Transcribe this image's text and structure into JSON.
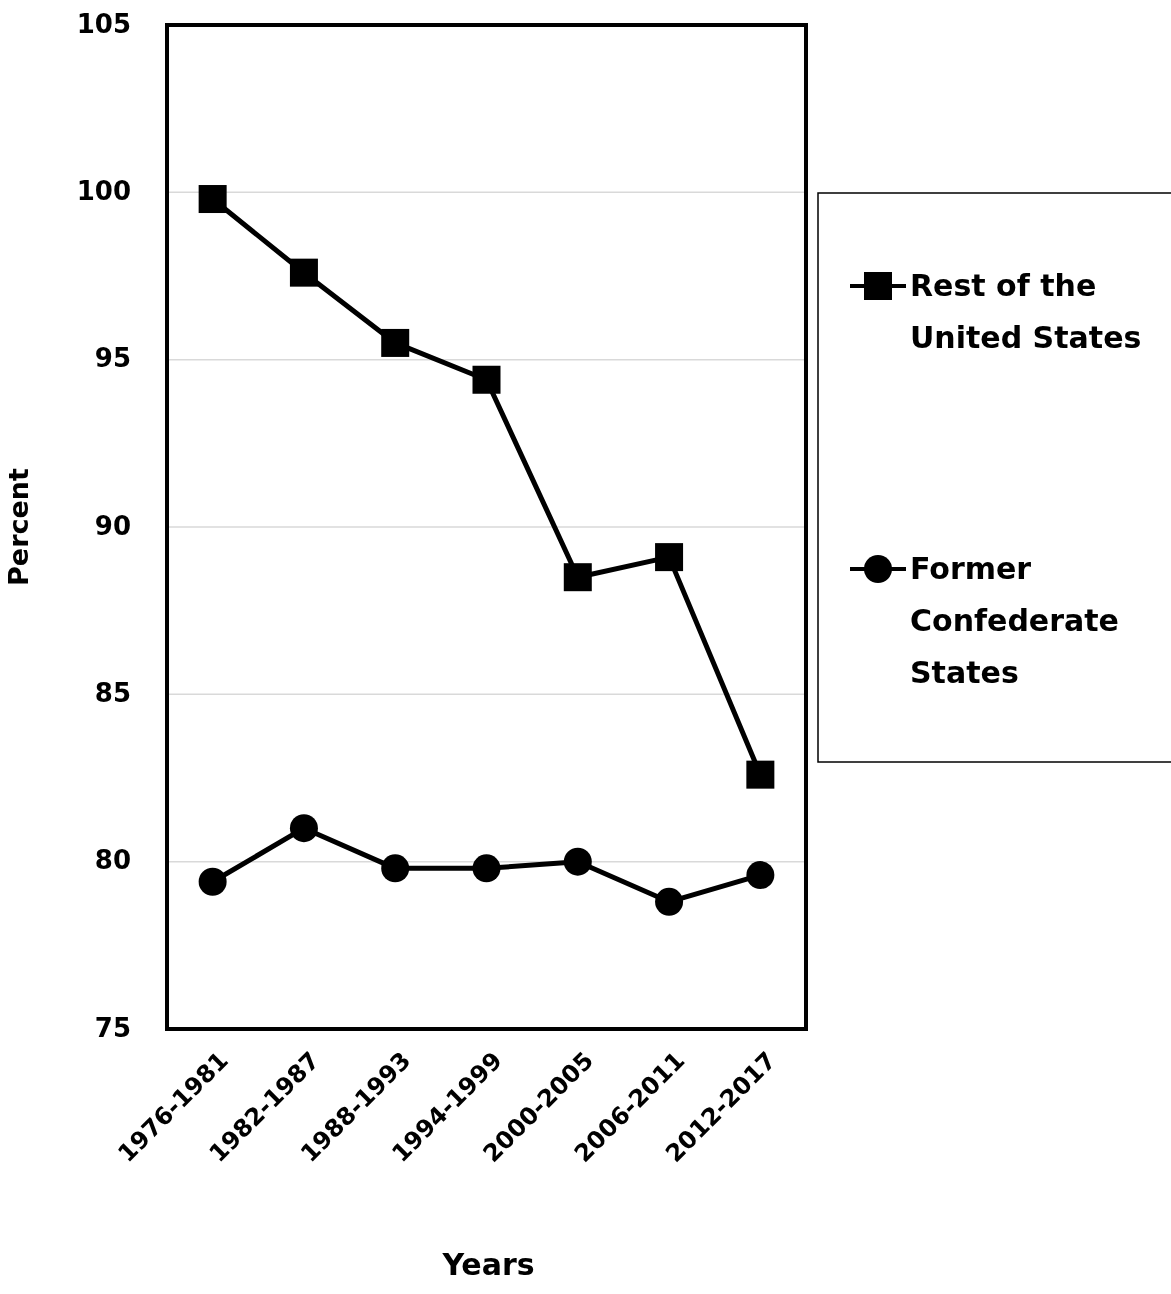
{
  "chart_data": {
    "type": "line",
    "xlabel": "Years",
    "ylabel": "Percent",
    "categories": [
      "1976-1981",
      "1982-1987",
      "1988-1993",
      "1994-1999",
      "2000-2005",
      "2006-2011",
      "2012-2017"
    ],
    "series": [
      {
        "name": "Rest of the United States",
        "color": "#000000",
        "marker": "square",
        "values": [
          99.8,
          97.6,
          95.5,
          94.4,
          88.5,
          89.1,
          82.6
        ]
      },
      {
        "name": "Former Confederate States",
        "color": "#000000",
        "marker": "circle",
        "values": [
          79.4,
          81.0,
          79.8,
          79.8,
          80.0,
          78.8,
          79.6
        ]
      }
    ],
    "ylim": [
      75,
      105
    ],
    "yticks": [
      75,
      80,
      85,
      90,
      95,
      100,
      105
    ],
    "grid": "y",
    "legend": "right"
  }
}
